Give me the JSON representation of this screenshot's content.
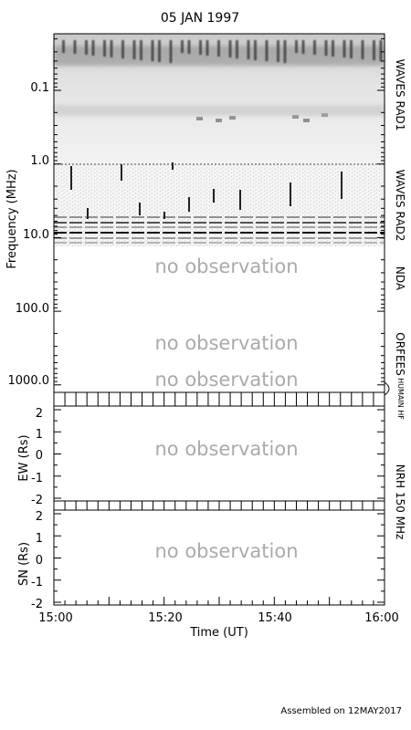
{
  "chart_data": {
    "type": "heatmap",
    "title": "05 JAN 1997",
    "xlabel": "Time (UT)",
    "x_ticks": [
      "15:00",
      "15:20",
      "15:40",
      "16:00"
    ],
    "x_range": [
      "15:00",
      "16:00"
    ],
    "spectrogram": {
      "ylabel": "Frequency (MHz)",
      "y_scale": "log",
      "y_direction": "increasing-downward",
      "y_range": [
        0.02,
        1600
      ],
      "y_ticks": [
        "0.1",
        "1.0",
        "10.0",
        "100.0",
        "1000.0"
      ],
      "bands": [
        {
          "name": "WAVES RAD1",
          "freq_range": [
            0.02,
            1.07
          ],
          "status": "data"
        },
        {
          "name": "WAVES RAD2",
          "freq_range": [
            1.07,
            14
          ],
          "status": "data"
        },
        {
          "name": "NDA",
          "freq_range": [
            14,
            150
          ],
          "status": "no observation"
        },
        {
          "name": "ORFEES",
          "freq_range": [
            150,
            1000
          ],
          "status": "no observation"
        },
        {
          "name": "HUMAIN HF",
          "freq_range": [
            1000,
            1600
          ],
          "status": "no observation"
        }
      ]
    },
    "panels": [
      {
        "name": "NRH 150 MHz",
        "ylabel": "EW (Rs)",
        "ylim": [
          -2,
          2
        ],
        "y_ticks": [
          "2",
          "1",
          "0",
          "-1",
          "-2"
        ],
        "status": "no observation"
      },
      {
        "ylabel": "SN (Rs)",
        "ylim": [
          -2,
          2
        ],
        "y_ticks": [
          "2",
          "1",
          "0",
          "-1",
          "-2"
        ],
        "status": "no observation"
      }
    ],
    "shared_right_label": "NRH 150 MHz",
    "no_observation_text": "no observation"
  },
  "footer": {
    "assembled": "Assembled on 12MAY2017"
  }
}
